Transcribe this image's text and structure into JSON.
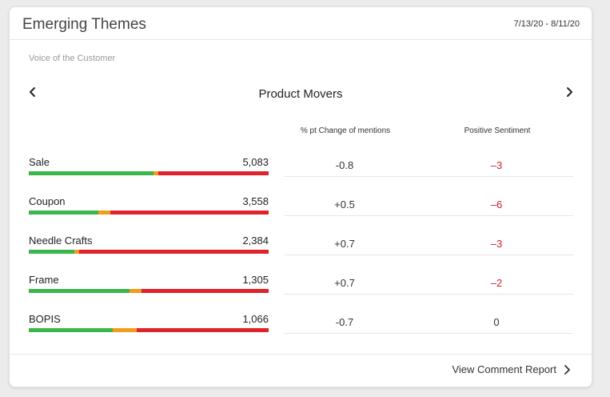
{
  "header": {
    "title": "Emerging Themes",
    "date_range": "7/13/20 - 8/11/20"
  },
  "subtitle": "Voice of the Customer",
  "section": {
    "title": "Product Movers",
    "prev_icon": "chevron-left-icon",
    "next_icon": "chevron-right-icon"
  },
  "columns": {
    "change": "% pt Change of mentions",
    "sentiment": "Positive Sentiment"
  },
  "colors": {
    "positive": "#3cb64a",
    "neutral": "#f29b1d",
    "negative": "#e0222a",
    "negative_text": "#d0202a"
  },
  "rows": [
    {
      "label": "Sale",
      "count": "5,083",
      "change": "-0.8",
      "sentiment": "–3",
      "bar": {
        "positive": 0.52,
        "neutral": 0.02,
        "negative": 0.46
      }
    },
    {
      "label": "Coupon",
      "count": "3,558",
      "change": "+0.5",
      "sentiment": "–6",
      "bar": {
        "positive": 0.29,
        "neutral": 0.05,
        "negative": 0.66
      }
    },
    {
      "label": "Needle Crafts",
      "count": "2,384",
      "change": "+0.7",
      "sentiment": "–3",
      "bar": {
        "positive": 0.19,
        "neutral": 0.02,
        "negative": 0.79
      }
    },
    {
      "label": "Frame",
      "count": "1,305",
      "change": "+0.7",
      "sentiment": "–2",
      "bar": {
        "positive": 0.42,
        "neutral": 0.05,
        "negative": 0.53
      }
    },
    {
      "label": "BOPIS",
      "count": "1,066",
      "change": "-0.7",
      "sentiment": "0",
      "bar": {
        "positive": 0.35,
        "neutral": 0.1,
        "negative": 0.55
      }
    }
  ],
  "footer": {
    "link_label": "View Comment Report",
    "link_icon": "chevron-right-icon"
  }
}
